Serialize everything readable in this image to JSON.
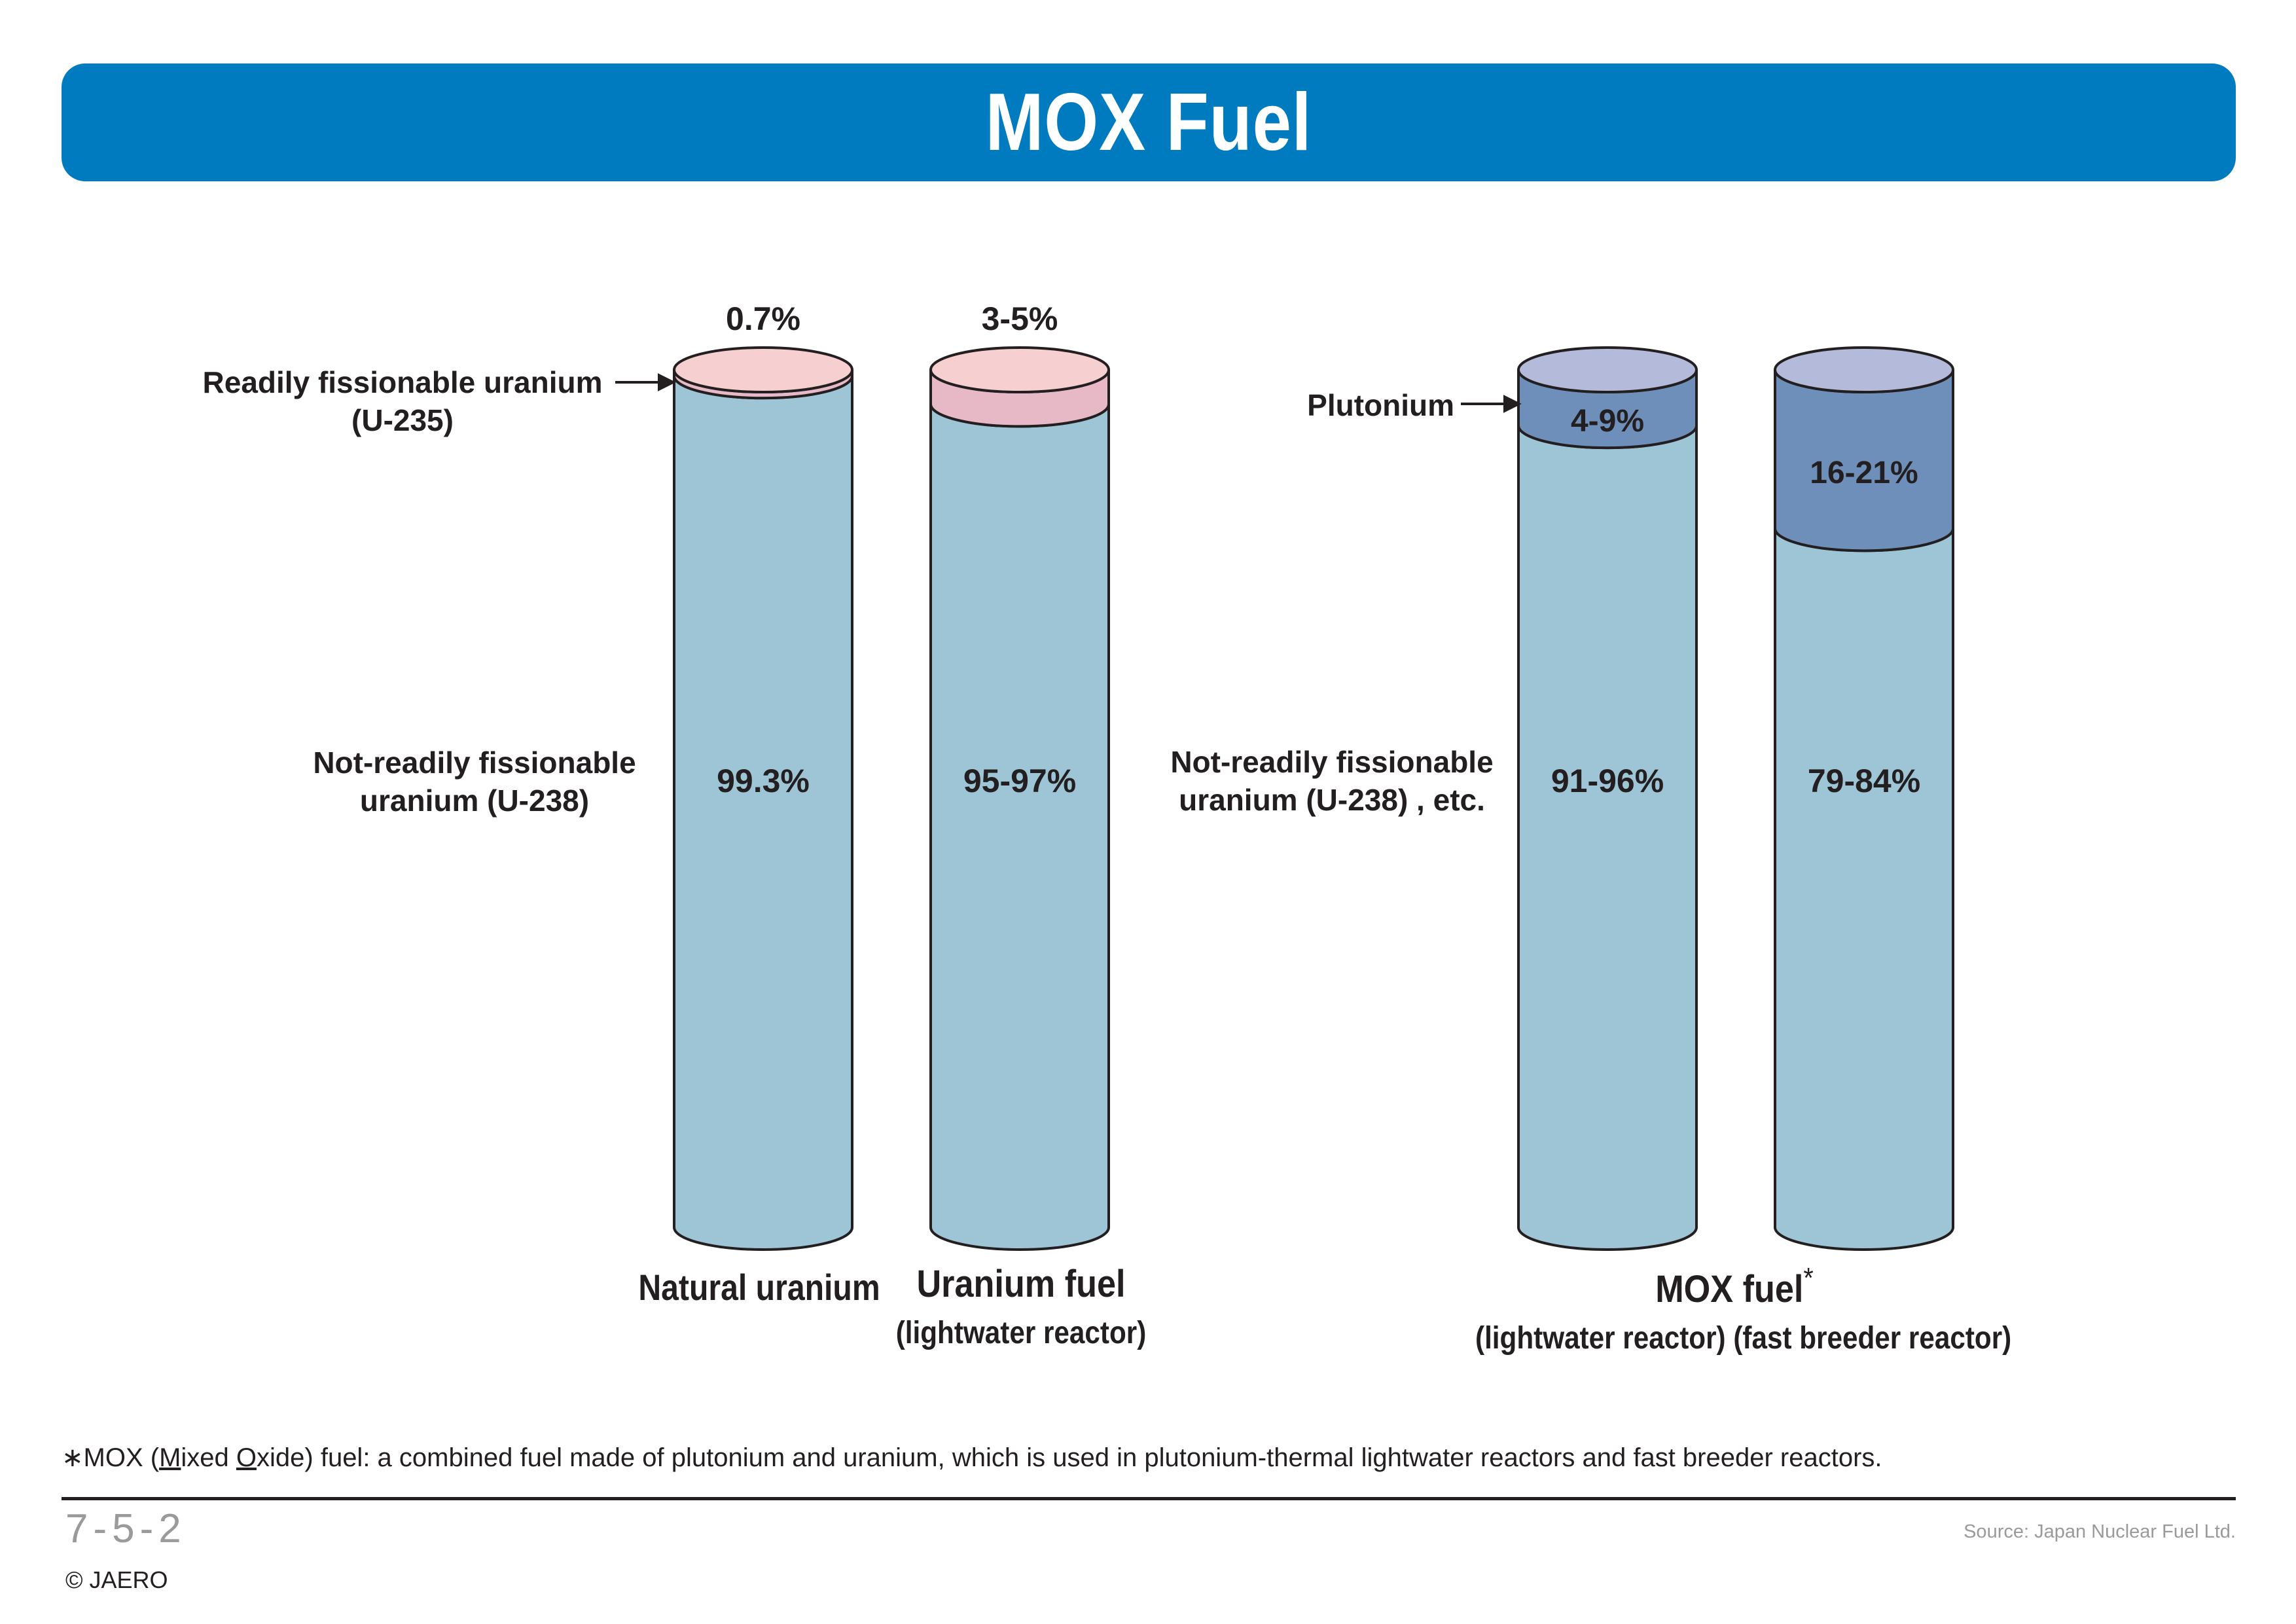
{
  "title": "MOX Fuel",
  "colors": {
    "banner": "#007bbf",
    "u238": "#9ec5d6",
    "u235": "#f6cfd0",
    "u235_band": "#e7b9c6",
    "plutonium": "#6e8fb9",
    "plutonium_top": "#b4bad9",
    "outline": "#231f20"
  },
  "chart_data": {
    "type": "stacked-bar",
    "categories": [
      "Natural uranium",
      "Uranium fuel (lightwater reactor)",
      "MOX fuel (lightwater reactor)",
      "MOX fuel (fast breeder reactor)"
    ],
    "series": [
      {
        "name": "Readily fissionable uranium (U-235)",
        "values": [
          0.7,
          4,
          null,
          null
        ],
        "labels": [
          "0.7%",
          "3-5%",
          null,
          null
        ]
      },
      {
        "name": "Plutonium",
        "values": [
          null,
          null,
          6.5,
          18.5
        ],
        "labels": [
          null,
          null,
          "4-9%",
          "16-21%"
        ]
      },
      {
        "name": "Not-readily fissionable uranium (U-238)",
        "values": [
          99.3,
          96,
          93.5,
          81.5
        ],
        "labels": [
          "99.3%",
          "95-97%",
          "91-96%",
          "79-84%"
        ]
      }
    ]
  },
  "labels": {
    "u235_line1": "Readily fissionable uranium",
    "u235_line2": "(U-235)",
    "u238_left_line1": "Not-readily fissionable",
    "u238_left_line2": "uranium (U-238)",
    "plutonium": "Plutonium",
    "u238_right_line1": "Not-readily fissionable",
    "u238_right_line2": "uranium (U-238) , etc."
  },
  "categories": {
    "natural": "Natural uranium",
    "uranium_fuel": "Uranium fuel",
    "uranium_fuel_sub": "(lightwater reactor)",
    "mox": "MOX fuel",
    "mox_mark": "*",
    "mox_sub1": "(lightwater reactor)",
    "mox_sub2": "(fast breeder reactor)"
  },
  "footnote": {
    "star": "∗MOX (",
    "m": "M",
    "ixed": "ixed ",
    "o": "O",
    "rest": "xide) fuel: a combined fuel made of plutonium and uranium, which is used in plutonium-thermal lightwater reactors and fast breeder reactors."
  },
  "page_number": "7-5-2",
  "copyright": "© JAERO",
  "source": "Source: Japan Nuclear Fuel Ltd."
}
